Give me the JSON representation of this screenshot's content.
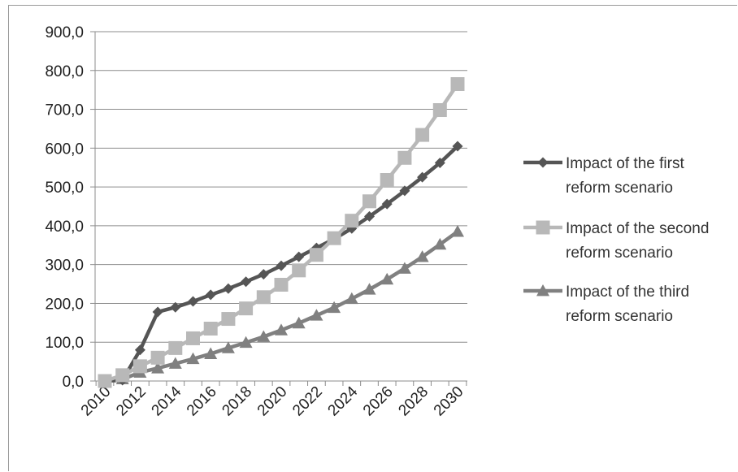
{
  "chart_data": {
    "type": "line",
    "title": "",
    "xlabel": "",
    "ylabel": "",
    "x": [
      2010,
      2011,
      2012,
      2013,
      2014,
      2015,
      2016,
      2017,
      2018,
      2019,
      2020,
      2021,
      2022,
      2023,
      2024,
      2025,
      2026,
      2027,
      2028,
      2029,
      2030
    ],
    "x_tick_labels": [
      "2010",
      "2012",
      "2014",
      "2016",
      "2018",
      "2020",
      "2022",
      "2024",
      "2026",
      "2028",
      "2030"
    ],
    "ylim": [
      0,
      900
    ],
    "y_tick_labels": [
      "0,0",
      "100,0",
      "200,0",
      "300,0",
      "400,0",
      "500,0",
      "600,0",
      "700,0",
      "800,0",
      "900,0"
    ],
    "grid": "horizontal",
    "legend_position": "right",
    "series": [
      {
        "name_lines": [
          "Impact of the first",
          "reform scenario"
        ],
        "marker": "diamond",
        "color": "#555555",
        "values": [
          0,
          2,
          80,
          178,
          190,
          205,
          222,
          238,
          256,
          275,
          297,
          320,
          343,
          366,
          393,
          424,
          456,
          490,
          525,
          562,
          605
        ]
      },
      {
        "name_lines": [
          "Impact of the second",
          "reform scenario"
        ],
        "marker": "square",
        "color": "#b8b8b8",
        "values": [
          0,
          15,
          38,
          60,
          85,
          110,
          135,
          160,
          187,
          216,
          248,
          285,
          325,
          368,
          413,
          463,
          518,
          575,
          634,
          698,
          765
        ]
      },
      {
        "name_lines": [
          "Impact of the third",
          "reform scenario"
        ],
        "marker": "triangle",
        "color": "#808080",
        "values": [
          0,
          5,
          22,
          33,
          45,
          57,
          70,
          85,
          99,
          114,
          131,
          149,
          169,
          189,
          212,
          236,
          262,
          290,
          320,
          352,
          385
        ]
      }
    ]
  }
}
